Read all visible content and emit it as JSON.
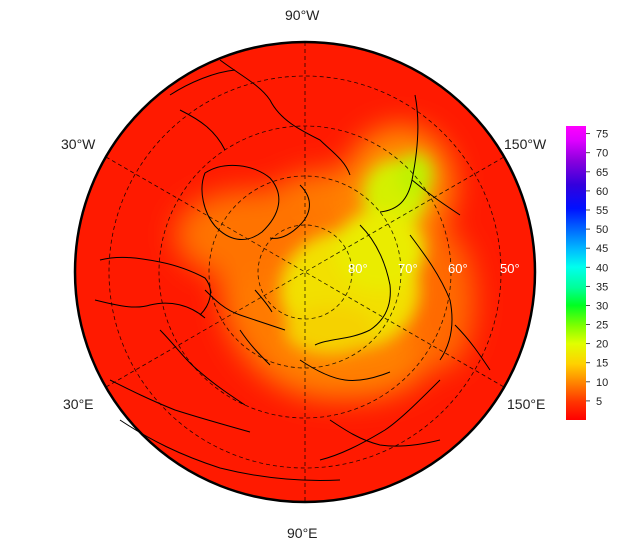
{
  "map": {
    "projection": "north polar stereographic",
    "lon_labels": {
      "top": "90°W",
      "bottom": "90°E",
      "upper_left": "30°W",
      "lower_left": "30°E",
      "upper_right": "150°W",
      "lower_right": "150°E"
    },
    "lat_labels": [
      "80°",
      "70°",
      "60°",
      "50°"
    ]
  },
  "colorbar": {
    "ticks": [
      "75",
      "70",
      "65",
      "60",
      "55",
      "50",
      "45",
      "40",
      "35",
      "30",
      "25",
      "20",
      "15",
      "10",
      "5"
    ],
    "min": 0,
    "max": 77,
    "colors": [
      "#ff0000",
      "#ff6600",
      "#ffcc00",
      "#e6ff00",
      "#66ff00",
      "#00ff44",
      "#00ffcc",
      "#00ccff",
      "#0066ff",
      "#0000ff",
      "#6600cc",
      "#cc00ff",
      "#ff00ff"
    ]
  },
  "colors": {
    "background_field": "#ff1a00",
    "high_field": "#d8f000",
    "mid_field": "#ff9a00",
    "coastline": "#000000",
    "grid": "#000000"
  }
}
